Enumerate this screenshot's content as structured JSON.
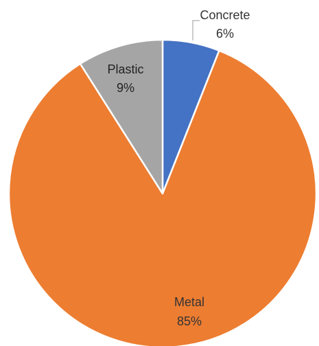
{
  "chart_data": {
    "type": "pie",
    "title": "",
    "slices": [
      {
        "label": "Concrete",
        "value": 6,
        "value_label": "6%",
        "color": "#4472C4"
      },
      {
        "label": "Metal",
        "value": 85,
        "value_label": "85%",
        "color": "#ED7D31"
      },
      {
        "label": "Plastic",
        "value": 9,
        "value_label": "9%",
        "color": "#A5A5A5"
      }
    ],
    "start_angle": "12 o'clock",
    "direction": "clockwise",
    "legend": "none",
    "slice_border_color": "#FFFFFF"
  }
}
